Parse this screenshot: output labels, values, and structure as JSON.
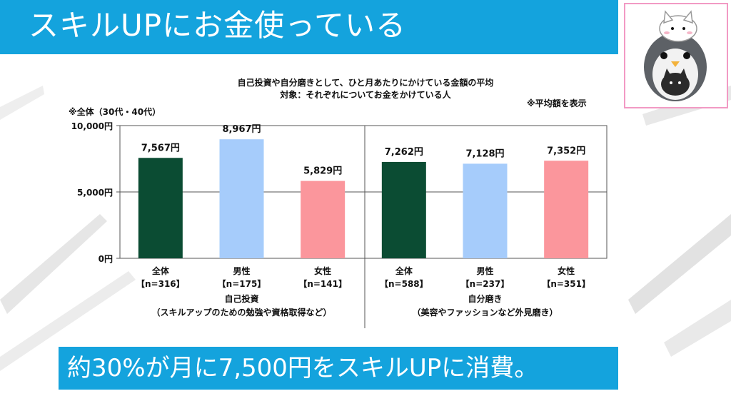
{
  "header": {
    "title": "スキルUPにお金使っている"
  },
  "footer": {
    "text": "約30%が月に7,500円をスキルUPに消費。"
  },
  "chart": {
    "title_line1": "自己投資や自分磨きとして、ひと月あたりにかけている金額の平均",
    "title_line2": "対象：それぞれについてお金をかけている人",
    "note_left": "※全体（30代・40代）",
    "note_right": "※平均額を表示"
  },
  "colors": {
    "accent": "#14a3dd",
    "bar_all": "#0b4c33",
    "bar_male": "#a6ccfb",
    "bar_female": "#fb969c"
  },
  "chart_data": {
    "type": "bar",
    "ylim": [
      0,
      10000
    ],
    "yticks": [
      {
        "value": 0,
        "label": "0円"
      },
      {
        "value": 5000,
        "label": "5,000円"
      },
      {
        "value": 10000,
        "label": "10,000円"
      }
    ],
    "groups": [
      {
        "label": "自己投資",
        "sublabel": "（スキルアップのための勉強や資格取得など）",
        "bars": [
          {
            "name": "全体",
            "n": "【n=316】",
            "value": 7567,
            "value_label": "7,567円",
            "color_key": "bar_all"
          },
          {
            "name": "男性",
            "n": "【n=175】",
            "value": 8967,
            "value_label": "8,967円",
            "color_key": "bar_male"
          },
          {
            "name": "女性",
            "n": "【n=141】",
            "value": 5829,
            "value_label": "5,829円",
            "color_key": "bar_female"
          }
        ]
      },
      {
        "label": "自分磨き",
        "sublabel": "（美容やファッションなど外見磨き）",
        "bars": [
          {
            "name": "全体",
            "n": "【n=588】",
            "value": 7262,
            "value_label": "7,262円",
            "color_key": "bar_all"
          },
          {
            "name": "男性",
            "n": "【n=237】",
            "value": 7128,
            "value_label": "7,128円",
            "color_key": "bar_male"
          },
          {
            "name": "女性",
            "n": "【n=351】",
            "value": 7352,
            "value_label": "7,352円",
            "color_key": "bar_female"
          }
        ]
      }
    ]
  }
}
